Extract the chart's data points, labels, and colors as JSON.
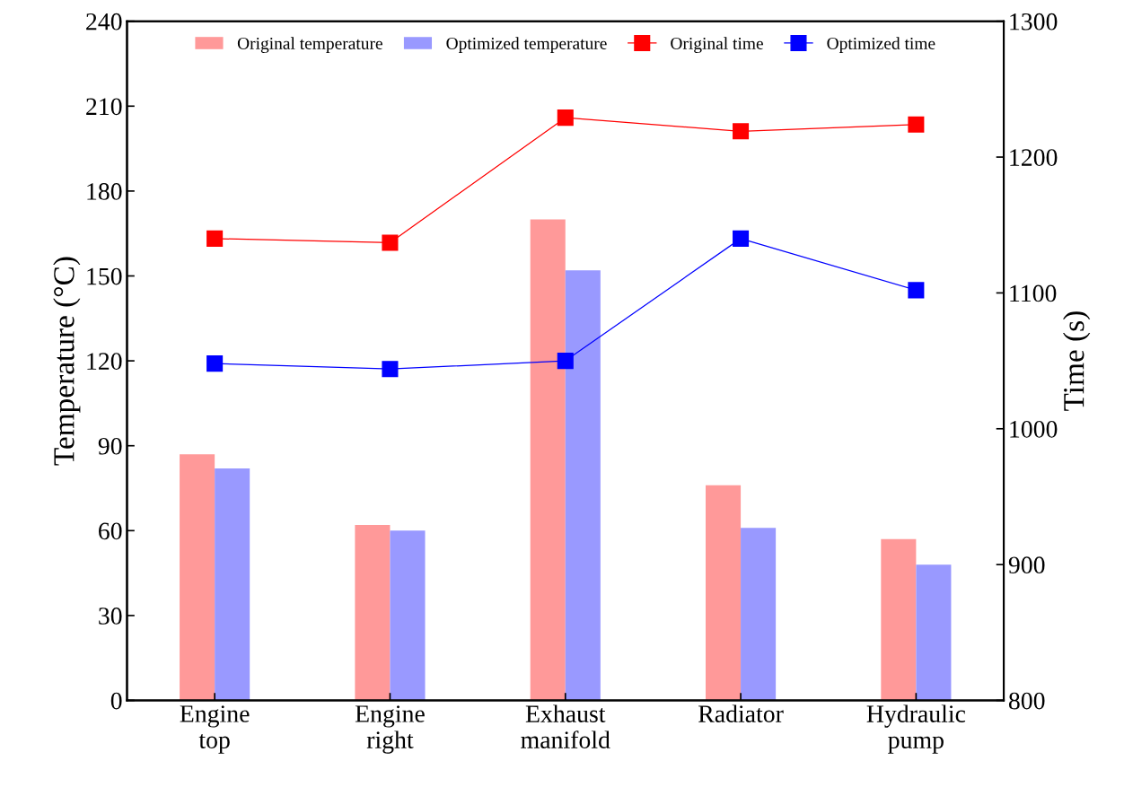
{
  "chart_data": {
    "type": "bar",
    "ylabel": "Temperature (°C)",
    "y2label": "Time (s)",
    "categories": [
      "Engine\ntop",
      "Engine\nright",
      "Exhaust\nmanifold",
      "Radiator",
      "Hydraulic\npump"
    ],
    "series": [
      {
        "name": "Original temperature",
        "color": "#ff9999",
        "values": [
          87,
          62,
          170,
          76,
          57
        ]
      },
      {
        "name": "Optimized temperature",
        "color": "#9999ff",
        "values": [
          82,
          60,
          152,
          61,
          48
        ]
      },
      {
        "name": "Original time",
        "type": "line",
        "axis": "y2",
        "color": "#ff0000",
        "marker": "square",
        "values": [
          1140,
          1137,
          1229,
          1219,
          1224
        ]
      },
      {
        "name": "Optimized time",
        "type": "line",
        "axis": "y2",
        "color": "#0000ff",
        "marker": "square",
        "values": [
          1048,
          1044,
          1050,
          1140,
          1102
        ]
      }
    ],
    "ylim": [
      0,
      240
    ],
    "yticks": [
      0,
      30,
      60,
      90,
      120,
      150,
      180,
      210,
      240
    ],
    "y2lim": [
      800,
      1300
    ],
    "y2ticks": [
      800,
      900,
      1000,
      1100,
      1200,
      1300
    ],
    "legend": "top",
    "grid": false
  }
}
